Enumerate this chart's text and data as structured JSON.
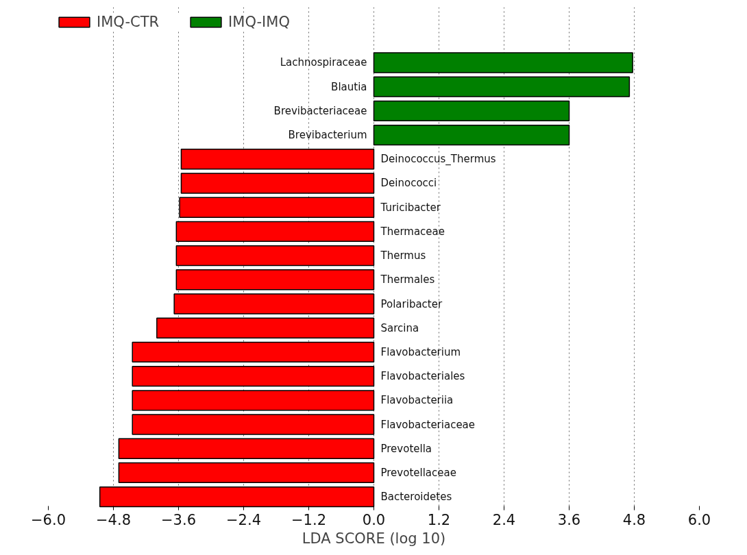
{
  "chart_data": {
    "type": "bar",
    "orientation": "horizontal",
    "xlabel": "LDA SCORE (log 10)",
    "categories": [
      "Lachnospiraceae",
      "Blautia",
      "Brevibacteriaceae",
      "Brevibacterium",
      "Deinococcus_Thermus",
      "Deinococci",
      "Turicibacter",
      "Thermaceae",
      "Thermus",
      "Thermales",
      "Polaribacter",
      "Sarcina",
      "Flavobacterium",
      "Flavobacteriales",
      "Flavobacteriia",
      "Flavobacteriaceae",
      "Prevotella",
      "Prevotellaceae",
      "Bacteroidetes"
    ],
    "series": [
      {
        "name": "IMQ-CTR",
        "color": "#ff0000",
        "values": [
          null,
          null,
          null,
          null,
          -3.55,
          -3.55,
          -3.58,
          -3.64,
          -3.64,
          -3.64,
          -3.68,
          -4.0,
          -4.45,
          -4.45,
          -4.45,
          -4.45,
          -4.7,
          -4.7,
          -5.05
        ]
      },
      {
        "name": "IMQ-IMQ",
        "color": "#008000",
        "values": [
          4.77,
          4.71,
          3.6,
          3.6,
          null,
          null,
          null,
          null,
          null,
          null,
          null,
          null,
          null,
          null,
          null,
          null,
          null,
          null,
          null
        ]
      }
    ],
    "xlim": [
      -6.0,
      6.0
    ],
    "xticks": [
      {
        "value": -6.0,
        "label": "−6.0"
      },
      {
        "value": -4.8,
        "label": "−4.8"
      },
      {
        "value": -3.6,
        "label": "−3.6"
      },
      {
        "value": -2.4,
        "label": "−2.4"
      },
      {
        "value": -1.2,
        "label": "−1.2"
      },
      {
        "value": 0.0,
        "label": "0.0"
      },
      {
        "value": 1.2,
        "label": "1.2"
      },
      {
        "value": 2.4,
        "label": "2.4"
      },
      {
        "value": 3.6,
        "label": "3.6"
      },
      {
        "value": 4.8,
        "label": "4.8"
      },
      {
        "value": 6.0,
        "label": "6.0"
      }
    ],
    "grid": "x",
    "legend": "top left"
  }
}
